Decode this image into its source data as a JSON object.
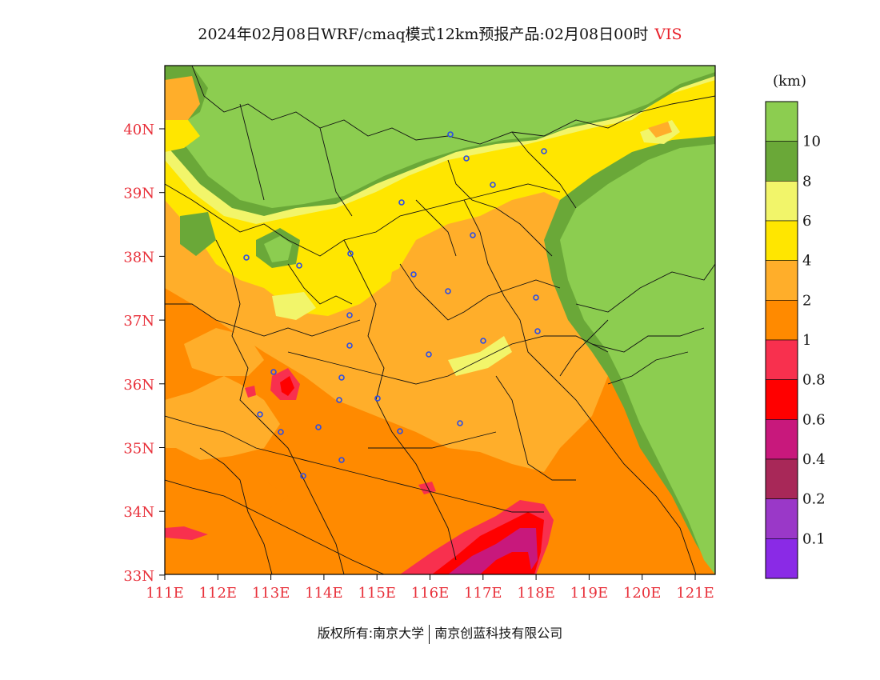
{
  "title": {
    "main": "2024年02月08日WRF/cmaq模式12km预报产品:02月08日00时",
    "variable": "VIS"
  },
  "footer": {
    "left": "版权所有:南京大学",
    "right": "南京创蓝科技有限公司"
  },
  "map": {
    "lat_labels": [
      "40N",
      "39N",
      "38N",
      "37N",
      "36N",
      "35N",
      "34N",
      "33N"
    ],
    "lon_labels": [
      "111E",
      "112E",
      "113E",
      "114E",
      "115E",
      "116E",
      "117E",
      "118E",
      "119E",
      "120E",
      "121E"
    ],
    "axis_label_color": "#e8303a"
  },
  "colorbar": {
    "unit": "(km)",
    "labels": [
      "10",
      "8",
      "6",
      "4",
      "2",
      "1",
      "0.8",
      "0.6",
      "0.4",
      "0.2",
      "0.1"
    ],
    "colors": [
      "#8ccd50",
      "#6aa838",
      "#f2f56a",
      "#ffe600",
      "#ffae2a",
      "#ff8a00",
      "#f8304e",
      "#ff0000",
      "#c8187c",
      "#a82858",
      "#9a38c8",
      "#8a2ae6"
    ]
  }
}
